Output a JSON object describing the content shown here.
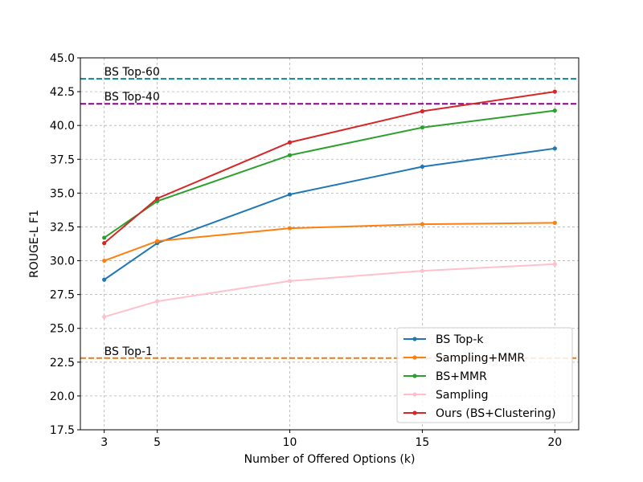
{
  "chart_data": {
    "type": "line",
    "title": "",
    "xlabel": "Number of Offered Options (k)",
    "ylabel": "ROUGE-L F1",
    "xlim": [
      2.1,
      20.9
    ],
    "ylim": [
      17.5,
      45.0
    ],
    "x_ticks": [
      3,
      5,
      10,
      15,
      20
    ],
    "y_ticks": [
      17.5,
      20.0,
      22.5,
      25.0,
      27.5,
      30.0,
      32.5,
      35.0,
      37.5,
      40.0,
      42.5,
      45.0
    ],
    "y_tick_labels": [
      "17.5",
      "20.0",
      "22.5",
      "25.0",
      "27.5",
      "30.0",
      "32.5",
      "35.0",
      "37.5",
      "40.0",
      "42.5",
      "45.0"
    ],
    "grid": true,
    "legend_position": "bottom-right",
    "x": [
      3,
      5,
      10,
      15,
      20
    ],
    "series": [
      {
        "name": "BS Top-k",
        "color": "#1f77b4",
        "values": [
          28.6,
          31.3,
          34.9,
          36.95,
          38.3
        ]
      },
      {
        "name": "Sampling+MMR",
        "color": "#ff7f0e",
        "values": [
          30.0,
          31.45,
          32.4,
          32.7,
          32.8
        ]
      },
      {
        "name": "BS+MMR",
        "color": "#2ca02c",
        "values": [
          31.7,
          34.4,
          37.8,
          39.85,
          41.1
        ]
      },
      {
        "name": "Sampling",
        "color": "#ffc0cb",
        "values": [
          25.85,
          27.0,
          28.5,
          29.25,
          29.75
        ]
      },
      {
        "name": "Ours (BS+Clustering)",
        "color": "#d62728",
        "values": [
          31.3,
          34.6,
          38.75,
          41.05,
          42.5
        ]
      }
    ],
    "reference_lines": [
      {
        "label": "BS Top-60",
        "value": 43.45,
        "color": "#17808f"
      },
      {
        "label": "BS Top-40",
        "value": 41.6,
        "color": "#8b008b"
      },
      {
        "label": "BS Top-1",
        "value": 22.8,
        "color": "#e07b26"
      }
    ]
  }
}
